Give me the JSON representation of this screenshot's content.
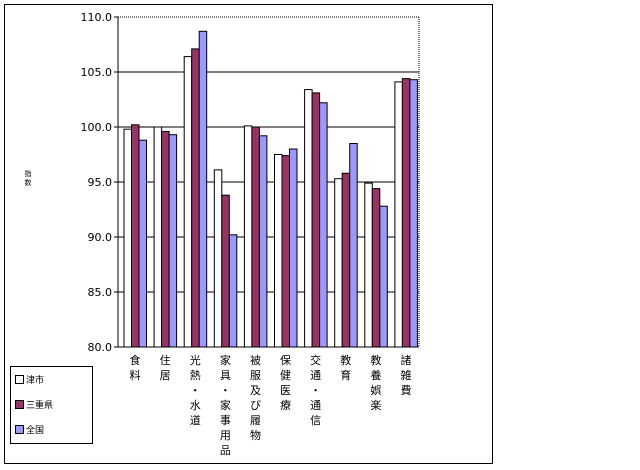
{
  "chart_data": {
    "type": "bar",
    "ylabel": "指数",
    "ylim": [
      80,
      110
    ],
    "yticks": [
      "80.0",
      "85.0",
      "90.0",
      "95.0",
      "100.0",
      "105.0",
      "110.0"
    ],
    "ytick_values": [
      80,
      85,
      90,
      95,
      100,
      105,
      110
    ],
    "categories": [
      "食料",
      "住居",
      "光熱・水道",
      "家具・家事用品",
      "被服及び履物",
      "保健医療",
      "交通・通信",
      "教育",
      "教養娯楽",
      "諸雑費"
    ],
    "series": [
      {
        "name": "津市",
        "color": "#ffffff",
        "values": [
          99.8,
          100.0,
          106.4,
          96.1,
          100.1,
          97.5,
          103.4,
          95.3,
          94.9,
          104.1
        ]
      },
      {
        "name": "三重県",
        "color": "#993366",
        "values": [
          100.2,
          99.6,
          107.1,
          93.8,
          100.0,
          97.4,
          103.1,
          95.8,
          94.4,
          104.4
        ]
      },
      {
        "name": "全国",
        "color": "#9999ff",
        "values": [
          98.8,
          99.3,
          108.7,
          90.2,
          99.2,
          98.0,
          102.2,
          98.5,
          92.8,
          104.3
        ]
      }
    ],
    "grid": true,
    "legend_position": "bottom-left"
  }
}
